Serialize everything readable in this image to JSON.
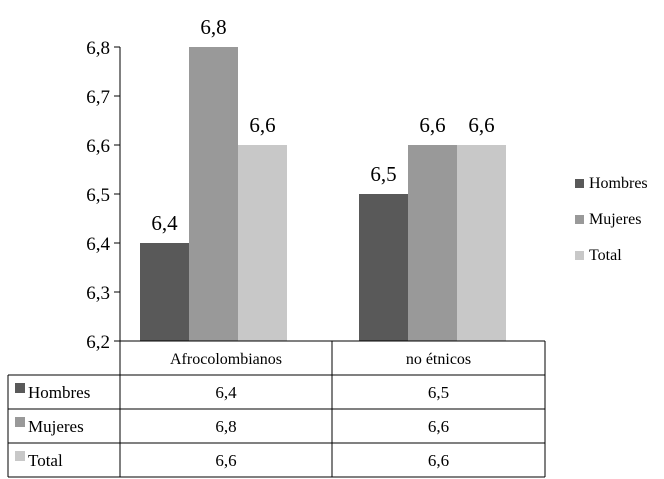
{
  "chart_data": {
    "type": "bar",
    "categories": [
      "Afrocolombianos",
      "no étnicos"
    ],
    "series": [
      {
        "name": "Hombres",
        "values": [
          6.4,
          6.5
        ],
        "color": "#595959"
      },
      {
        "name": "Mujeres",
        "values": [
          6.8,
          6.6
        ],
        "color": "#999999"
      },
      {
        "name": "Total",
        "values": [
          6.6,
          6.6
        ],
        "color": "#c8c8c8"
      }
    ],
    "value_labels": {
      "Hombres": [
        "6,4",
        "6,5"
      ],
      "Mujeres": [
        "6,8",
        "6,6"
      ],
      "Total": [
        "6,6",
        "6,6"
      ]
    },
    "y_ticks": [
      "6,2",
      "6,3",
      "6,4",
      "6,5",
      "6,6",
      "6,7",
      "6,8"
    ],
    "y_tick_values": [
      6.2,
      6.3,
      6.4,
      6.5,
      6.6,
      6.7,
      6.8
    ],
    "ylim": [
      6.2,
      6.8
    ],
    "legend_position": "right",
    "data_table": true,
    "grid": false
  }
}
